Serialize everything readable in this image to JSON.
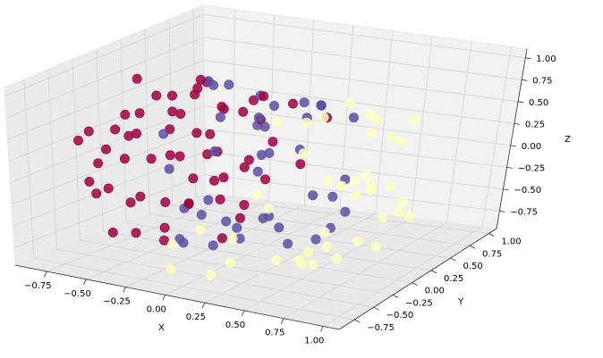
{
  "chart_data": {
    "type": "scatter",
    "projection": "3d",
    "title": "",
    "xlabel": "X",
    "ylabel": "Y",
    "zlabel": "Z",
    "xlim": [
      -0.95,
      1.1
    ],
    "ylim": [
      -0.95,
      1.1
    ],
    "zlim": [
      -0.95,
      1.1
    ],
    "xticks": [
      "−0.75",
      "−0.50",
      "−0.25",
      "0.00",
      "0.25",
      "0.50",
      "0.75",
      "1.00"
    ],
    "yticks": [
      "−0.75",
      "−0.50",
      "−0.25",
      "0.00",
      "0.25",
      "0.50",
      "0.75",
      "1.00"
    ],
    "zticks": [
      "−0.75",
      "−0.50",
      "−0.25",
      "0.00",
      "0.25",
      "0.50",
      "0.75",
      "1.00"
    ],
    "grid": true,
    "legend": "none",
    "series": [
      {
        "color": "#9e0142",
        "x": [
          -0.85,
          -0.8,
          -0.75,
          -0.72,
          -0.68,
          -0.66,
          -0.62,
          -0.6,
          -0.58,
          -0.55,
          -0.52,
          -0.5,
          -0.48,
          -0.45,
          -0.42,
          -0.4,
          -0.38,
          -0.35,
          -0.3,
          -0.25,
          -0.2,
          -0.18,
          -0.15,
          -0.1,
          -0.05,
          0.0,
          -0.82,
          -0.7,
          -0.64,
          -0.56,
          -0.46,
          -0.36,
          -0.28,
          -0.22,
          -0.12,
          -0.78,
          -0.74,
          -0.6,
          -0.5,
          -0.44,
          -0.32,
          -0.26,
          -0.16,
          -0.08,
          0.05,
          0.1,
          -0.65,
          -0.54,
          -0.4,
          -0.3,
          -0.2,
          -0.1,
          -0.88,
          -0.7,
          -0.58,
          -0.48,
          -0.34,
          -0.24,
          -0.14
        ],
        "y": [
          -0.1,
          -0.3,
          0.1,
          -0.5,
          0.3,
          -0.2,
          0.45,
          -0.6,
          0.0,
          0.6,
          -0.4,
          0.2,
          -0.7,
          0.5,
          -0.1,
          0.7,
          -0.55,
          0.3,
          0.65,
          -0.3,
          0.55,
          -0.6,
          0.2,
          0.45,
          -0.2,
          0.6,
          0.2,
          0.0,
          -0.4,
          0.4,
          -0.5,
          0.1,
          -0.45,
          0.35,
          -0.35,
          -0.5,
          0.4,
          0.1,
          -0.2,
          0.3,
          -0.1,
          0.5,
          0.0,
          0.3,
          0.4,
          0.7,
          -0.6,
          0.55,
          -0.65,
          0.1,
          -0.1,
          0.1,
          0.05,
          0.6,
          -0.25,
          0.0,
          0.55,
          0.15,
          -0.5
        ],
        "z": [
          0.05,
          -0.35,
          0.4,
          -0.1,
          0.15,
          0.55,
          -0.45,
          0.2,
          0.7,
          -0.2,
          0.45,
          -0.6,
          0.0,
          0.35,
          0.8,
          -0.3,
          0.6,
          -0.55,
          0.2,
          0.75,
          -0.4,
          -0.1,
          0.55,
          0.1,
          0.85,
          -0.2,
          -0.6,
          0.85,
          -0.7,
          0.6,
          -0.25,
          0.9,
          -0.65,
          -0.6,
          0.6,
          0.35,
          -0.2,
          -0.85,
          0.1,
          0.75,
          -0.4,
          0.5,
          -0.8,
          0.7,
          0.6,
          0.3,
          0.55,
          -0.5,
          0.35,
          0.3,
          0.2,
          -0.6,
          0.2,
          0.4,
          -0.75,
          0.55,
          -0.3,
          -0.2,
          0.4
        ]
      },
      {
        "color": "#5e4fa2",
        "x": [
          -0.45,
          -0.4,
          -0.35,
          -0.3,
          -0.25,
          -0.2,
          -0.15,
          -0.1,
          -0.05,
          0.0,
          0.05,
          0.1,
          0.15,
          0.2,
          0.25,
          0.3,
          0.35,
          0.4,
          0.45,
          0.5,
          -0.3,
          -0.18,
          -0.08,
          0.02,
          0.12,
          0.22,
          0.32,
          0.42,
          -0.22,
          -0.12,
          0.0,
          0.08,
          0.18,
          0.28,
          0.38,
          0.55,
          0.6,
          -0.38,
          -0.02,
          0.3
        ],
        "y": [
          0.55,
          0.25,
          0.7,
          -0.4,
          0.05,
          0.5,
          -0.6,
          0.3,
          -0.15,
          0.65,
          -0.45,
          0.2,
          -0.7,
          0.45,
          -0.25,
          0.6,
          -0.5,
          0.1,
          0.35,
          -0.3,
          -0.2,
          -0.45,
          0.75,
          -0.55,
          0.55,
          -0.1,
          0.25,
          -0.5,
          0.0,
          0.4,
          -0.3,
          0.1,
          -0.4,
          0.5,
          -0.2,
          0.2,
          -0.1,
          -0.05,
          0.15,
          -0.65
        ],
        "z": [
          0.6,
          0.8,
          0.1,
          0.55,
          0.9,
          -0.1,
          0.3,
          0.7,
          -0.5,
          0.3,
          0.5,
          -0.7,
          0.1,
          0.6,
          0.75,
          -0.3,
          0.4,
          0.85,
          -0.5,
          0.6,
          -0.8,
          -0.6,
          0.4,
          -0.2,
          -0.5,
          0.9,
          -0.8,
          -0.1,
          -0.9,
          -0.75,
          0.8,
          0.2,
          -0.5,
          -0.45,
          -0.6,
          0.7,
          -0.4,
          -0.5,
          0.55,
          -0.2
        ]
      },
      {
        "color": "#ffffbf",
        "x": [
          0.2,
          0.25,
          0.3,
          0.35,
          0.4,
          0.45,
          0.5,
          0.55,
          0.6,
          0.65,
          0.7,
          0.75,
          0.8,
          0.85,
          0.9,
          0.95,
          0.3,
          0.4,
          0.5,
          0.6,
          0.7,
          0.8,
          0.9,
          0.35,
          0.45,
          0.55,
          0.65,
          0.75,
          0.85,
          0.1,
          0.15,
          0.0,
          -0.1,
          0.2,
          0.48,
          0.62,
          0.78,
          0.92,
          0.58,
          0.68,
          0.88
        ],
        "y": [
          -0.55,
          0.4,
          -0.2,
          0.65,
          -0.6,
          0.15,
          0.55,
          -0.35,
          0.3,
          -0.1,
          0.5,
          -0.45,
          0.2,
          0.0,
          -0.2,
          0.1,
          -0.7,
          0.7,
          -0.65,
          0.6,
          -0.55,
          0.45,
          0.3,
          0.0,
          -0.15,
          0.15,
          -0.4,
          0.1,
          -0.3,
          -0.6,
          -0.8,
          -0.85,
          -0.7,
          0.0,
          -0.2,
          0.5,
          -0.1,
          -0.3,
          0.05,
          -0.3,
          0.2
        ],
        "z": [
          -0.7,
          0.5,
          0.8,
          -0.5,
          0.2,
          -0.8,
          -0.3,
          0.6,
          0.7,
          -0.75,
          0.3,
          -0.2,
          0.55,
          -0.6,
          0.2,
          -0.1,
          -0.3,
          0.2,
          0.1,
          -0.3,
          -0.4,
          0.6,
          -0.4,
          -0.9,
          -0.85,
          0.9,
          -0.65,
          0.8,
          0.35,
          -0.85,
          -0.2,
          -0.4,
          -0.8,
          -0.95,
          0.85,
          -0.6,
          -0.5,
          0.45,
          0.0,
          0.3,
          -0.3
        ]
      }
    ]
  }
}
